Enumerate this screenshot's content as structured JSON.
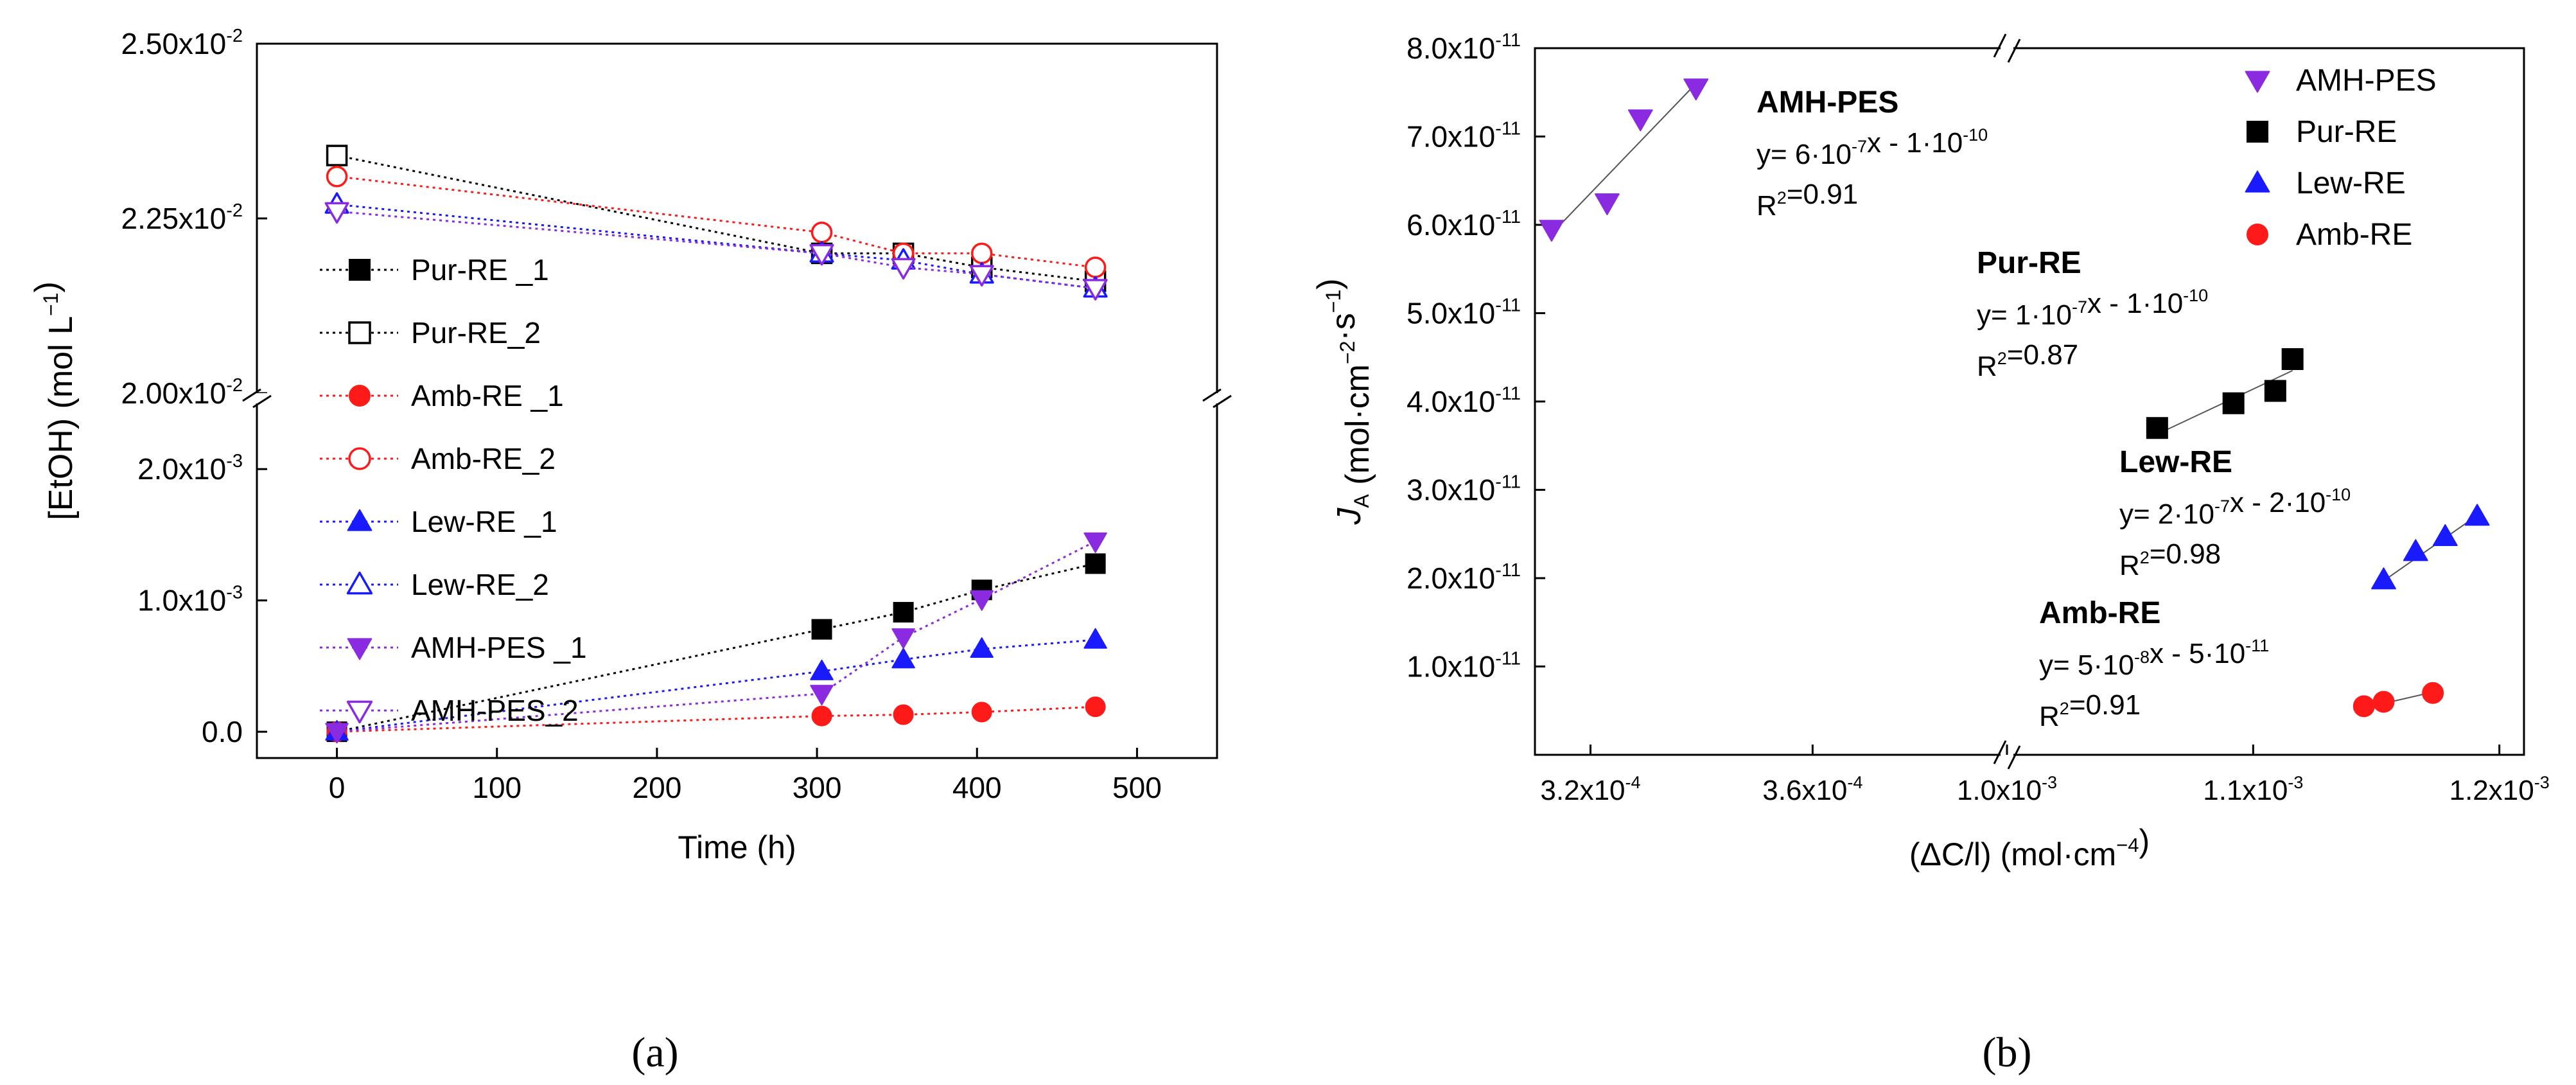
{
  "chart_data": [
    {
      "type": "scatter",
      "panel_label": "(a)",
      "xlabel": "Time (h)",
      "ylabel": "[EtOH) (mol L",
      "ylabel_sup": "−1",
      "ylabel_close": ")",
      "xlim": [
        -50,
        550
      ],
      "xticks": [
        0,
        100,
        200,
        300,
        400,
        500
      ],
      "broken_y_axis": true,
      "ylim_upper": [
        0.02,
        0.025
      ],
      "yticks_upper": [
        {
          "v": 0.02,
          "m": "2.00x10",
          "e": "-2"
        },
        {
          "v": 0.0225,
          "m": "2.25x10",
          "e": "-2"
        },
        {
          "v": 0.025,
          "m": "2.50x10",
          "e": "-2"
        }
      ],
      "ylim_lower": [
        -0.0002,
        0.0025
      ],
      "yticks_lower": [
        {
          "v": 0.0,
          "m": "0.0",
          "e": ""
        },
        {
          "v": 0.001,
          "m": "1.0x10",
          "e": "-3"
        },
        {
          "v": 0.002,
          "m": "2.0x10",
          "e": "-3"
        }
      ],
      "legend_position": "left",
      "grid": false,
      "series": [
        {
          "name": "Pur-RE _1",
          "color": "#000000",
          "marker": "square",
          "filled": true,
          "x": [
            0,
            303,
            354,
            403,
            474
          ],
          "y": [
            0.0,
            0.00078,
            0.00091,
            0.00108,
            0.00128
          ]
        },
        {
          "name": "Pur-RE_2",
          "color": "#000000",
          "marker": "square",
          "filled": false,
          "x": [
            0,
            303,
            354,
            403,
            474
          ],
          "y": [
            0.0234,
            0.022,
            0.022,
            0.0218,
            0.0216
          ]
        },
        {
          "name": "Amb-RE _1",
          "color": "#ff1a1a",
          "marker": "circle",
          "filled": true,
          "x": [
            0,
            303,
            354,
            403,
            474
          ],
          "y": [
            0.0,
            0.00012,
            0.00013,
            0.00015,
            0.00019
          ]
        },
        {
          "name": "Amb-RE_2",
          "color": "#ff1a1a",
          "marker": "circle",
          "filled": false,
          "x": [
            0,
            303,
            354,
            403,
            474
          ],
          "y": [
            0.0231,
            0.0223,
            0.022,
            0.022,
            0.0218
          ]
        },
        {
          "name": "Lew-RE _1",
          "color": "#1a1aff",
          "marker": "triangle-up",
          "filled": true,
          "x": [
            0,
            303,
            354,
            403,
            474
          ],
          "y": [
            0.0,
            0.00046,
            0.00055,
            0.00063,
            0.0007
          ]
        },
        {
          "name": "Lew-RE_2",
          "color": "#1a1aff",
          "marker": "triangle-up",
          "filled": false,
          "x": [
            0,
            303,
            354,
            403,
            474
          ],
          "y": [
            0.0227,
            0.022,
            0.0219,
            0.0217,
            0.0215
          ]
        },
        {
          "name": "AMH-PES _1",
          "color": "#8a2be2",
          "marker": "triangle-down",
          "filled": true,
          "x": [
            0,
            303,
            354,
            403,
            474
          ],
          "y": [
            0.0,
            0.00029,
            0.00072,
            0.00101,
            0.00145
          ]
        },
        {
          "name": "AMH-PES_2",
          "color": "#8a2be2",
          "marker": "triangle-down",
          "filled": false,
          "x": [
            0,
            303,
            354,
            403,
            474
          ],
          "y": [
            0.0226,
            0.022,
            0.0218,
            0.0217,
            0.0215
          ]
        }
      ]
    },
    {
      "type": "scatter",
      "panel_label": "(b)",
      "xlabel": "(ΔC/l) (mol·cm",
      "xlabel_sup": "−4",
      "xlabel_close": ")",
      "ylabel_main": "J",
      "ylabel_sub": "A",
      "ylabel_rest": " (mol·cm",
      "ylabel_sup1": "−2",
      "ylabel_mid": "·s",
      "ylabel_sup2": "−1",
      "ylabel_close": ")",
      "broken_x_axis": true,
      "xlim_left": [
        0.00031,
        0.000395
      ],
      "xticks_left": [
        {
          "v": 0.00032,
          "m": "3.2x10",
          "e": "-4"
        },
        {
          "v": 0.00036,
          "m": "3.6x10",
          "e": "-4"
        }
      ],
      "xlim_right": [
        0.001,
        0.00121
      ],
      "xticks_right": [
        {
          "v": 0.001,
          "m": "1.0x10",
          "e": "-3"
        },
        {
          "v": 0.0011,
          "m": "1.1x10",
          "e": "-3"
        },
        {
          "v": 0.0012,
          "m": "1.2x10",
          "e": "-3"
        }
      ],
      "ylim": [
        0,
        8e-11
      ],
      "yticks": [
        {
          "v": 1e-11,
          "m": "1.0x10",
          "e": "-11"
        },
        {
          "v": 2e-11,
          "m": "2.0x10",
          "e": "-11"
        },
        {
          "v": 3e-11,
          "m": "3.0x10",
          "e": "-11"
        },
        {
          "v": 4e-11,
          "m": "4.0x10",
          "e": "-11"
        },
        {
          "v": 5e-11,
          "m": "5.0x10",
          "e": "-11"
        },
        {
          "v": 6e-11,
          "m": "6.0x10",
          "e": "-11"
        },
        {
          "v": 7e-11,
          "m": "7.0x10",
          "e": "-11"
        },
        {
          "v": 8e-11,
          "m": "8.0x10",
          "e": "-11"
        }
      ],
      "legend_position": "top-right",
      "grid": false,
      "series": [
        {
          "name": "AMH-PES",
          "color": "#8a2be2",
          "marker": "triangle-down",
          "segment": "left",
          "x": [
            0.000313,
            0.000323,
            0.000329,
            0.000339
          ],
          "y": [
            5.95e-11,
            6.25e-11,
            7.2e-11,
            7.55e-11
          ],
          "fit_x": [
            0.000313,
            0.000339
          ],
          "fit_y": [
            5.9e-11,
            7.6e-11
          ]
        },
        {
          "name": "Pur-RE",
          "color": "#000000",
          "marker": "square",
          "segment": "right",
          "x": [
            0.001061,
            0.001092,
            0.001109,
            0.001116
          ],
          "y": [
            3.7e-11,
            3.98e-11,
            4.12e-11,
            4.48e-11
          ],
          "fit_x": [
            0.001061,
            0.001116
          ],
          "fit_y": [
            3.63e-11,
            4.35e-11
          ]
        },
        {
          "name": "Lew-RE",
          "color": "#1a1aff",
          "marker": "triangle-up",
          "segment": "right",
          "x": [
            0.001153,
            0.001166,
            0.001178,
            0.001191
          ],
          "y": [
            1.98e-11,
            2.3e-11,
            2.47e-11,
            2.7e-11
          ],
          "fit_x": [
            0.001153,
            0.001191
          ],
          "fit_y": [
            1.97e-11,
            2.71e-11
          ]
        },
        {
          "name": "Amb-RE",
          "color": "#ff1a1a",
          "marker": "circle",
          "segment": "right",
          "x": [
            0.001145,
            0.001153,
            0.001173
          ],
          "y": [
            5.5e-12,
            6e-12,
            7e-12
          ],
          "fit_x": [
            0.001145,
            0.001173
          ],
          "fit_y": [
            5.3e-12,
            7.1e-12
          ]
        }
      ],
      "annotations": [
        {
          "series": "AMH-PES",
          "name": "AMH-PES",
          "eq_a": "y= 6·10",
          "eq_a_sup": "-7",
          "eq_b": "x - 1·10",
          "eq_b_sup": "-10",
          "r2": "=0.91"
        },
        {
          "series": "Pur-RE",
          "name": "Pur-RE",
          "eq_a": "y= 1·10",
          "eq_a_sup": "-7",
          "eq_b": "x - 1·10",
          "eq_b_sup": "-10",
          "r2": "=0.87"
        },
        {
          "series": "Lew-RE",
          "name": "Lew-RE",
          "eq_a": "y= 2·10",
          "eq_a_sup": "-7",
          "eq_b": "x - 2·10",
          "eq_b_sup": "-10",
          "r2": "=0.98"
        },
        {
          "series": "Amb-RE",
          "name": "Amb-RE",
          "eq_a": "y= 5·10",
          "eq_a_sup": "-8",
          "eq_b": "x - 5·10",
          "eq_b_sup": "-11",
          "r2": "=0.91"
        }
      ]
    }
  ]
}
